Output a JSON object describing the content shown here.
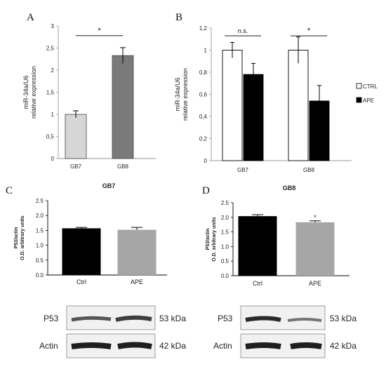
{
  "panels": {
    "A": "A",
    "B": "B",
    "C": "C",
    "D": "D"
  },
  "colors": {
    "light_gray": "#d6d6d6",
    "dark_gray": "#7a7a7a",
    "black": "#000000",
    "white": "#ffffff",
    "ape_gray": "#a6a6a6"
  },
  "chart_data": [
    {
      "id": "A",
      "type": "bar",
      "categories": [
        "GB7",
        "GB8"
      ],
      "values": [
        1.0,
        2.33
      ],
      "errors": [
        0.08,
        0.18
      ],
      "bar_colors": [
        "#d6d6d6",
        "#7a7a7a"
      ],
      "ylabel": [
        "miR-34a/U6",
        "relative expression"
      ],
      "ylim": [
        0,
        3
      ],
      "yticks": [
        "0",
        "0,5",
        "1",
        "1,5",
        "2",
        "2,5",
        "3"
      ],
      "significance": [
        {
          "between": [
            "GB7",
            "GB8"
          ],
          "label": "*"
        }
      ]
    },
    {
      "id": "B",
      "type": "bar",
      "categories": [
        "GB7",
        "GB8"
      ],
      "series": [
        {
          "name": "CTRL",
          "values": [
            1.0,
            1.0
          ],
          "errors": [
            0.07,
            0.12
          ],
          "color": "#ffffff"
        },
        {
          "name": "APE",
          "values": [
            0.78,
            0.54
          ],
          "errors": [
            0.1,
            0.14
          ],
          "color": "#000000"
        }
      ],
      "ylabel": [
        "miR-34a/U6",
        "relative expression"
      ],
      "ylim": [
        0,
        1.2
      ],
      "yticks": [
        "0",
        "0,2",
        "0,4",
        "0,6",
        "0,8",
        "1",
        "1,2"
      ],
      "legend": "right",
      "significance": [
        {
          "category": "GB7",
          "label": "n.s."
        },
        {
          "category": "GB8",
          "label": "*"
        }
      ]
    },
    {
      "id": "C",
      "type": "bar",
      "title": "GB7",
      "categories": [
        "Ctrl",
        "APE"
      ],
      "values": [
        1.57,
        1.52
      ],
      "errors": [
        0.03,
        0.08
      ],
      "bar_colors": [
        "#000000",
        "#a6a6a6"
      ],
      "ylabel": [
        "P53/actin",
        "O.D. arbitrary units"
      ],
      "ylim": [
        0,
        2.5
      ],
      "yticks": [
        "0.0",
        "0.5",
        "1.0",
        "1.5",
        "2.0",
        "2.5"
      ]
    },
    {
      "id": "D",
      "type": "bar",
      "title": "GB8",
      "categories": [
        "Ctrl",
        "APE"
      ],
      "values": [
        2.04,
        1.83
      ],
      "errors": [
        0.05,
        0.05
      ],
      "bar_colors": [
        "#000000",
        "#a6a6a6"
      ],
      "ylabel": [
        "P53/actin",
        "O.D. arbitrary units"
      ],
      "ylim": [
        0,
        2.5
      ],
      "yticks": [
        "0.0",
        "0.5",
        "1.0",
        "1.5",
        "2.0",
        "2.5"
      ],
      "significance": [
        {
          "category": "APE",
          "label": "*"
        }
      ]
    }
  ],
  "blots": {
    "left": {
      "rows": [
        {
          "protein": "P53",
          "size": "53 kDa"
        },
        {
          "protein": "Actin",
          "size": "42 kDa"
        }
      ]
    },
    "right": {
      "rows": [
        {
          "protein": "P53",
          "size": "53 kDa"
        },
        {
          "protein": "Actin",
          "size": "42 kDa"
        }
      ]
    }
  }
}
